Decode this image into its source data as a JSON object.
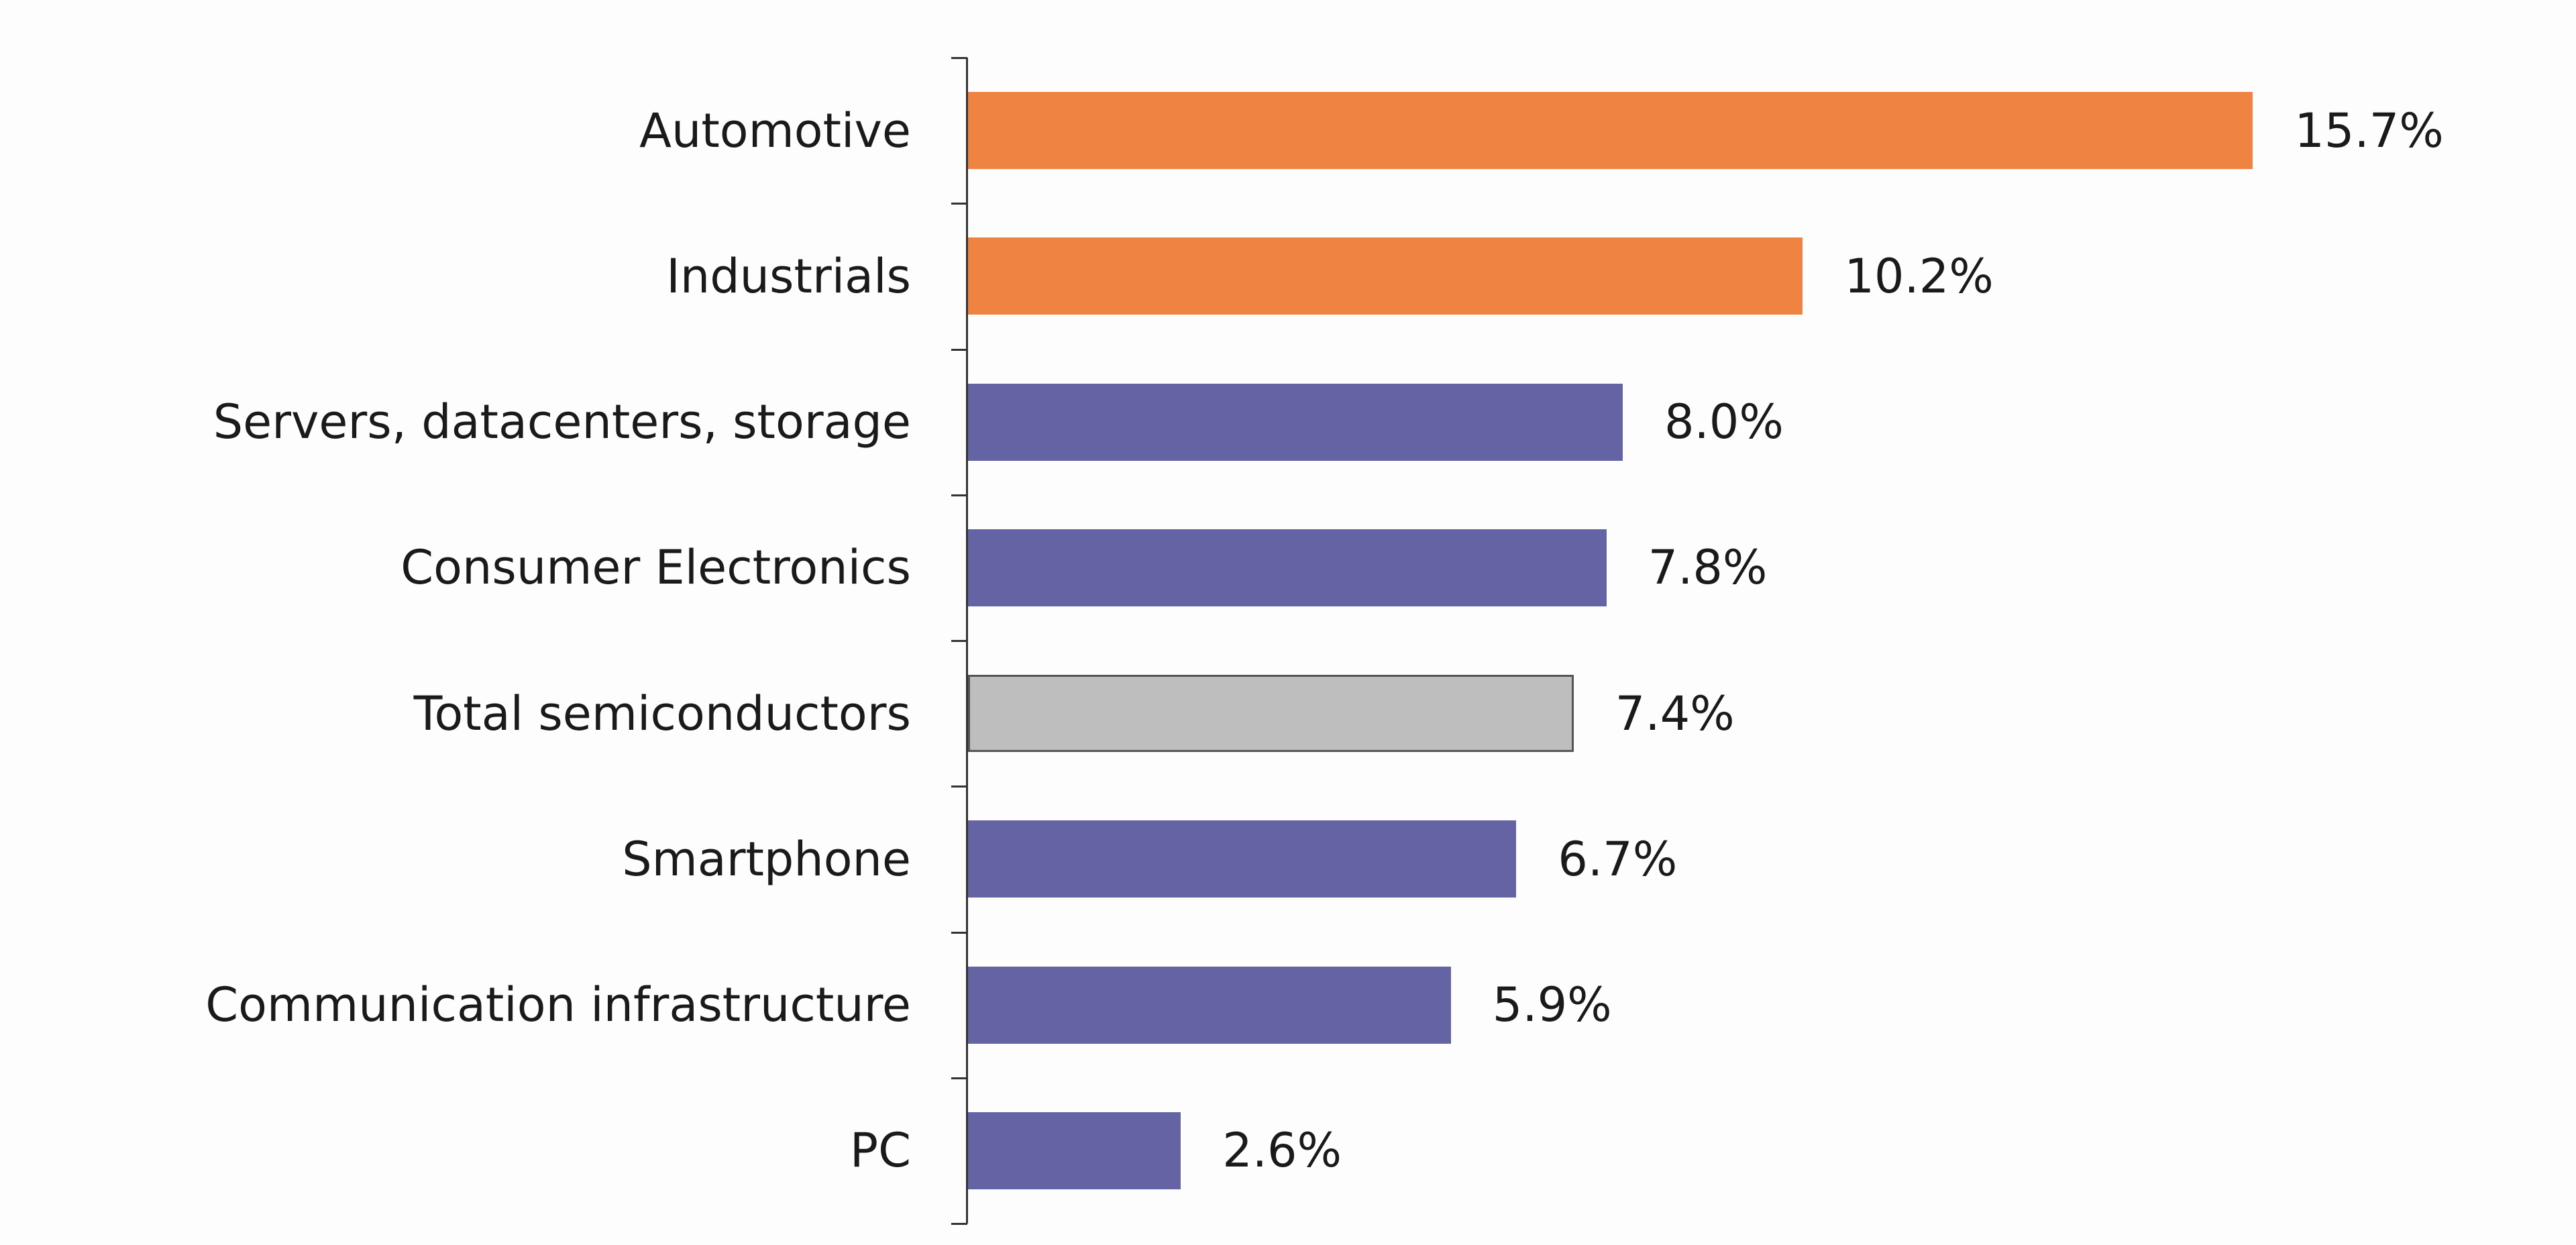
{
  "chart_data": {
    "type": "bar",
    "orientation": "horizontal",
    "title": "",
    "xlabel": "",
    "ylabel": "",
    "categories": [
      "Automotive",
      "Industrials",
      "Servers, datacenters, storage",
      "Consumer Electronics",
      "Total semiconductors",
      "Smartphone",
      "Communication infrastructure",
      "PC"
    ],
    "values": [
      15.7,
      10.2,
      8.0,
      7.8,
      7.4,
      6.7,
      5.9,
      2.6
    ],
    "value_labels": [
      "15.7%",
      "10.2%",
      "8.0%",
      "7.8%",
      "7.4%",
      "6.7%",
      "5.9%",
      "2.6%"
    ],
    "groups": [
      "highlight",
      "highlight",
      "segment",
      "segment",
      "total",
      "segment",
      "segment",
      "segment"
    ],
    "colors": {
      "highlight": "#EF8342",
      "segment": "#6464A4",
      "total": "#BEBEBE"
    },
    "xlim": [
      0,
      16
    ],
    "grid": false,
    "legend": "none"
  }
}
